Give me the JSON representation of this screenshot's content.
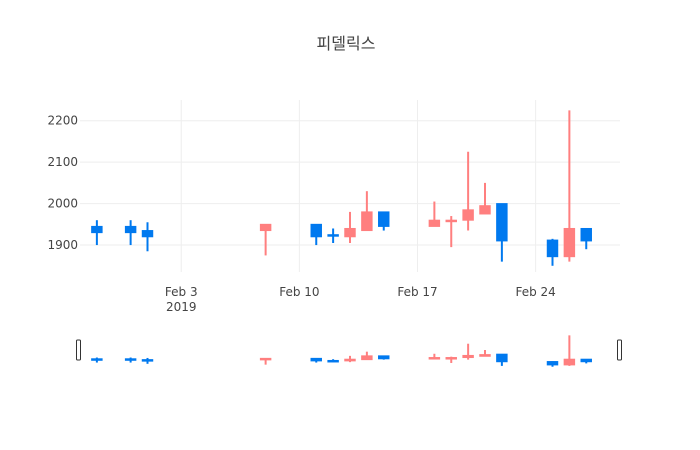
{
  "chart_data": {
    "type": "candlestick",
    "title": "피델릭스",
    "xlabel": "",
    "ylabel": "",
    "ylim": [
      1835,
      2250
    ],
    "xlim": [
      "2019-01-28",
      "2019-03-01"
    ],
    "grid": true,
    "legend": false,
    "rangeslider": true,
    "y_ticks": [
      "1900",
      "2000",
      "2100",
      "2200"
    ],
    "x_ticks": [
      {
        "date": "2019-02-03",
        "label": "Feb 3",
        "sublabel": "2019"
      },
      {
        "date": "2019-02-10",
        "label": "Feb 10",
        "sublabel": ""
      },
      {
        "date": "2019-02-17",
        "label": "Feb 17",
        "sublabel": ""
      },
      {
        "date": "2019-02-24",
        "label": "Feb 24",
        "sublabel": ""
      }
    ],
    "colors": {
      "increasing": "#ff7f7f",
      "decreasing": "#0079ef"
    },
    "candles": [
      {
        "date": "2019-01-29",
        "open": 1945,
        "high": 1960,
        "low": 1900,
        "close": 1930
      },
      {
        "date": "2019-01-31",
        "open": 1945,
        "high": 1960,
        "low": 1900,
        "close": 1930
      },
      {
        "date": "2019-02-01",
        "open": 1935,
        "high": 1955,
        "low": 1885,
        "close": 1920
      },
      {
        "date": "2019-02-08",
        "open": 1935,
        "high": 1950,
        "low": 1875,
        "close": 1950
      },
      {
        "date": "2019-02-11",
        "open": 1950,
        "high": 1950,
        "low": 1900,
        "close": 1920
      },
      {
        "date": "2019-02-12",
        "open": 1925,
        "high": 1940,
        "low": 1905,
        "close": 1922
      },
      {
        "date": "2019-02-13",
        "open": 1920,
        "high": 1980,
        "low": 1905,
        "close": 1940
      },
      {
        "date": "2019-02-14",
        "open": 1935,
        "high": 2030,
        "low": 1935,
        "close": 1980
      },
      {
        "date": "2019-02-15",
        "open": 1980,
        "high": 1980,
        "low": 1935,
        "close": 1945
      },
      {
        "date": "2019-02-18",
        "open": 1945,
        "high": 2005,
        "low": 1945,
        "close": 1960
      },
      {
        "date": "2019-02-19",
        "open": 1960,
        "high": 1970,
        "low": 1895,
        "close": 1960
      },
      {
        "date": "2019-02-20",
        "open": 1960,
        "high": 2125,
        "low": 1935,
        "close": 1985
      },
      {
        "date": "2019-02-21",
        "open": 1975,
        "high": 2050,
        "low": 1975,
        "close": 1995
      },
      {
        "date": "2019-02-22",
        "open": 2000,
        "high": 2000,
        "low": 1860,
        "close": 1910
      },
      {
        "date": "2019-02-25",
        "open": 1912,
        "high": 1915,
        "low": 1850,
        "close": 1872
      },
      {
        "date": "2019-02-26",
        "open": 1872,
        "high": 2225,
        "low": 1860,
        "close": 1940
      },
      {
        "date": "2019-02-27",
        "open": 1940,
        "high": 1940,
        "low": 1890,
        "close": 1910
      }
    ]
  }
}
